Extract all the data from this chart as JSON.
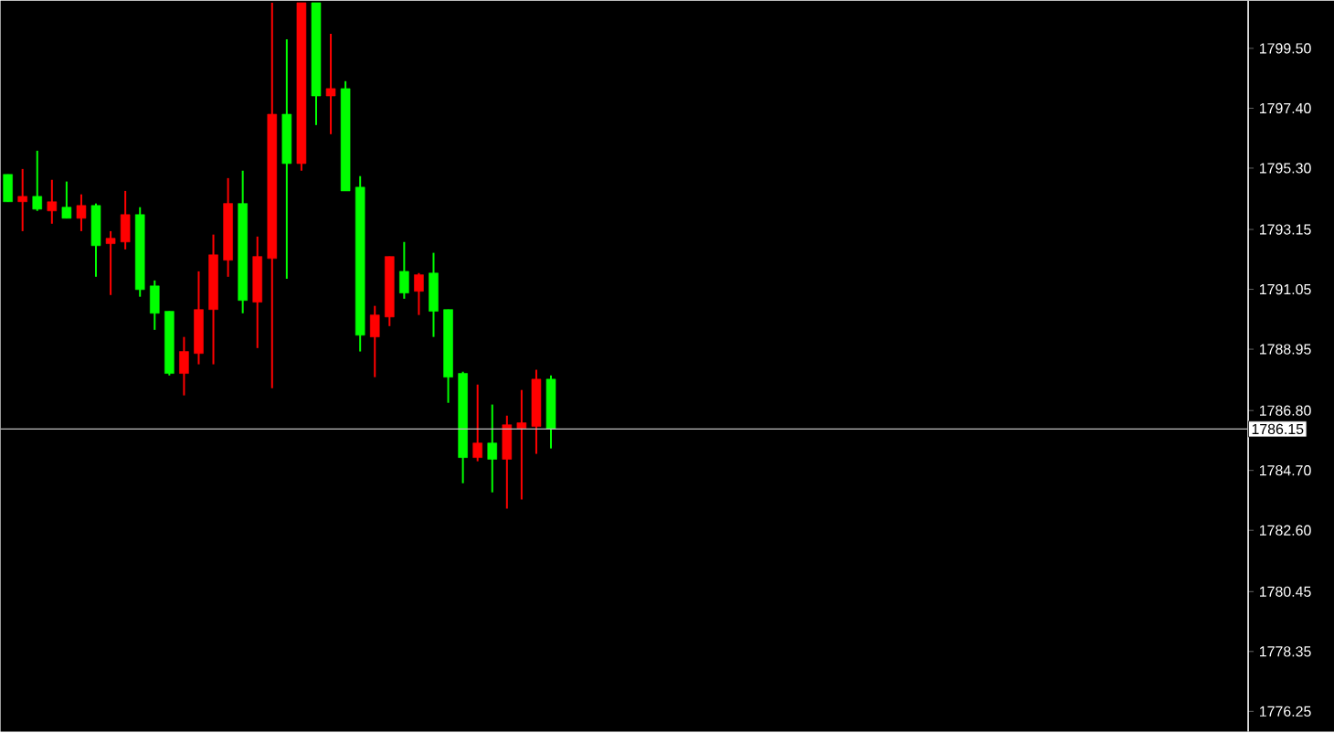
{
  "chart_data": {
    "type": "candlestick",
    "categories": [
      null,
      null,
      null,
      null,
      null,
      null,
      null,
      null,
      null,
      null,
      null,
      null,
      null,
      null,
      null,
      null,
      null,
      null,
      null,
      null,
      null,
      null,
      null,
      null,
      null,
      null,
      null,
      null,
      null,
      null,
      null,
      null,
      null,
      null,
      null,
      null,
      null,
      null,
      null,
      null,
      null,
      null,
      null,
      null,
      null,
      null,
      null,
      null,
      null,
      null,
      null,
      null,
      null,
      null,
      null,
      null,
      null,
      null,
      null,
      null,
      null,
      null,
      null,
      null,
      null,
      null,
      null,
      null,
      null,
      null,
      null,
      null,
      null,
      null,
      null,
      null,
      null,
      null,
      null,
      null,
      null,
      null,
      null,
      null,
      null
    ],
    "ohlc": [
      [
        1795.08,
        1795.08,
        1794.12,
        1794.12
      ],
      [
        1794.12,
        1795.27,
        1793.09,
        1794.31
      ],
      [
        1794.31,
        1795.91,
        1793.8,
        1793.86
      ],
      [
        1793.8,
        1794.89,
        1793.35,
        1794.12
      ],
      [
        1793.93,
        1794.83,
        1793.54,
        1793.54
      ],
      [
        1793.54,
        1794.38,
        1793.09,
        1793.99
      ],
      [
        1793.99,
        1794.06,
        1791.49,
        1792.58
      ],
      [
        1792.65,
        1793.09,
        1790.85,
        1792.84
      ],
      [
        1792.71,
        1794.5,
        1792.45,
        1793.67
      ],
      [
        1793.67,
        1793.93,
        1790.79,
        1791.04
      ],
      [
        1791.17,
        1791.36,
        1789.63,
        1790.21
      ],
      [
        1790.28,
        1790.28,
        1788.03,
        1788.1
      ],
      [
        1788.1,
        1789.38,
        1787.33,
        1788.87
      ],
      [
        1788.8,
        1791.68,
        1788.42,
        1790.34
      ],
      [
        1790.34,
        1792.97,
        1788.42,
        1792.26
      ],
      [
        1792.07,
        1794.95,
        1791.49,
        1794.06
      ],
      [
        1794.06,
        1795.21,
        1790.21,
        1790.66
      ],
      [
        1790.6,
        1792.9,
        1788.99,
        1792.2
      ],
      [
        1792.13,
        1801.1,
        1787.58,
        1797.19
      ],
      [
        1797.19,
        1799.82,
        1791.42,
        1795.46
      ],
      [
        1795.46,
        1801.1,
        1795.21,
        1801.1
      ],
      [
        1801.1,
        1801.1,
        1796.81,
        1797.83
      ],
      [
        1797.83,
        1800.01,
        1796.49,
        1798.09
      ],
      [
        1798.09,
        1798.35,
        1794.5,
        1794.5
      ],
      [
        1794.63,
        1795.02,
        1788.87,
        1789.44
      ],
      [
        1789.38,
        1790.47,
        1787.97,
        1790.15
      ],
      [
        1790.08,
        1792.2,
        1789.76,
        1792.2
      ],
      [
        1791.68,
        1792.71,
        1790.72,
        1790.92
      ],
      [
        1790.98,
        1791.62,
        1790.15,
        1791.56
      ],
      [
        1791.62,
        1792.33,
        1789.38,
        1790.28
      ],
      [
        1790.34,
        1790.34,
        1787.07,
        1787.97
      ],
      [
        1788.1,
        1788.16,
        1784.25,
        1785.15
      ],
      [
        1785.15,
        1787.71,
        1785.02,
        1785.66
      ],
      [
        1785.66,
        1787.01,
        1783.93,
        1785.09
      ],
      [
        1785.09,
        1786.62,
        1783.36,
        1786.3
      ],
      [
        1786.18,
        1787.52,
        1783.68,
        1786.37
      ],
      [
        1786.24,
        1788.23,
        1785.28,
        1787.9
      ],
      [
        1787.9,
        1788.03,
        1785.47,
        1786.15
      ],
      null,
      null,
      null,
      null,
      null,
      null,
      null,
      null,
      null,
      null,
      null,
      null,
      null,
      null,
      null,
      null,
      null,
      null,
      null,
      null,
      null,
      null,
      null,
      null,
      null,
      null,
      null,
      null,
      null,
      null,
      null,
      null,
      null,
      null,
      null,
      null,
      null,
      null,
      null,
      null,
      null,
      null,
      null,
      null,
      null,
      null,
      null
    ],
    "colors": [
      "#00ff00",
      "#ff0000",
      "#00ff00",
      "#ff0000",
      "#00ff00",
      "#ff0000",
      "#00ff00",
      "#ff0000",
      "#ff0000",
      "#00ff00",
      "#00ff00",
      "#00ff00",
      "#ff0000",
      "#ff0000",
      "#ff0000",
      "#ff0000",
      "#00ff00",
      "#ff0000",
      "#ff0000",
      "#00ff00",
      "#ff0000",
      "#00ff00",
      "#ff0000",
      "#00ff00",
      "#00ff00",
      "#ff0000",
      "#ff0000",
      "#00ff00",
      "#ff0000",
      "#00ff00",
      "#00ff00",
      "#00ff00",
      "#ff0000",
      "#00ff00",
      "#ff0000",
      "#ff0000",
      "#ff0000",
      "#00ff00",
      null,
      null,
      null,
      null,
      null,
      null,
      null,
      null,
      null,
      null,
      null,
      null,
      null,
      null,
      null,
      null,
      null,
      null,
      null,
      null,
      null,
      null,
      null,
      null,
      null,
      null,
      null,
      null,
      null,
      null,
      null,
      null,
      null,
      null,
      null,
      null,
      null,
      null,
      null,
      null,
      null,
      null,
      null,
      null,
      null,
      null,
      null
    ],
    "ylim": [
      1775.54,
      1801.17
    ],
    "yticks": [
      {
        "value": 1776.25,
        "label": "1776.25"
      },
      {
        "value": 1778.35,
        "label": "1778.35"
      },
      {
        "value": 1780.45,
        "label": "1780.45"
      },
      {
        "value": 1782.6,
        "label": "1782.60"
      },
      {
        "value": 1784.7,
        "label": "1784.70"
      },
      {
        "value": 1786.8,
        "label": "1786.80"
      },
      {
        "value": 1788.95,
        "label": "1788.95"
      },
      {
        "value": 1791.05,
        "label": "1791.05"
      },
      {
        "value": 1793.15,
        "label": "1793.15"
      },
      {
        "value": 1795.3,
        "label": "1795.30"
      },
      {
        "value": 1797.4,
        "label": "1797.40"
      },
      {
        "value": 1799.5,
        "label": "1799.50"
      }
    ],
    "ref_lines": [
      {
        "axis": "y",
        "value": 1786.15,
        "label": "1786.15",
        "color": "#c0c0c0"
      }
    ],
    "tick_labels": "y",
    "grid": false
  }
}
